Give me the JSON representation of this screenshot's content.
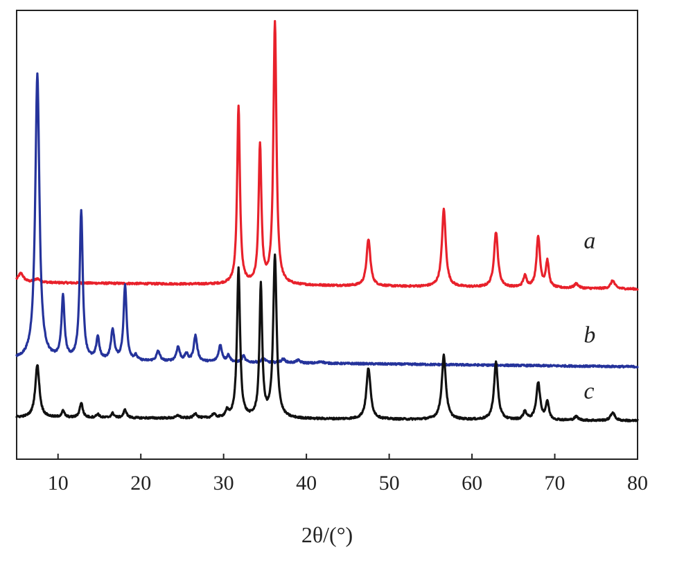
{
  "chart_data": {
    "type": "line",
    "title": "",
    "xlabel": "2θ/(°)",
    "ylabel": "",
    "xlim": [
      5,
      80
    ],
    "ylim": [
      0,
      1
    ],
    "grid": false,
    "legend": "none",
    "x_ticks": [
      10,
      20,
      30,
      40,
      50,
      60,
      70,
      80
    ],
    "series": [
      {
        "name": "a",
        "color": "#e8212b",
        "baseline": 0.394,
        "slope": -0.0002,
        "peaks": [
          {
            "x": 5.5,
            "h": 0.02,
            "w": 0.4
          },
          {
            "x": 7.5,
            "h": 0.008,
            "w": 0.4
          },
          {
            "x": 31.8,
            "h": 0.397,
            "w": 0.2
          },
          {
            "x": 34.4,
            "h": 0.308,
            "w": 0.2
          },
          {
            "x": 36.2,
            "h": 0.585,
            "w": 0.22
          },
          {
            "x": 47.5,
            "h": 0.104,
            "w": 0.28
          },
          {
            "x": 56.6,
            "h": 0.173,
            "w": 0.28
          },
          {
            "x": 62.9,
            "h": 0.123,
            "w": 0.28
          },
          {
            "x": 66.4,
            "h": 0.025,
            "w": 0.25
          },
          {
            "x": 68.0,
            "h": 0.114,
            "w": 0.25
          },
          {
            "x": 69.1,
            "h": 0.058,
            "w": 0.22
          },
          {
            "x": 72.6,
            "h": 0.01,
            "w": 0.3
          },
          {
            "x": 77.0,
            "h": 0.018,
            "w": 0.3
          }
        ]
      },
      {
        "name": "b",
        "color": "#25339b",
        "baseline": 0.221,
        "slope": -0.0002,
        "peaks": [
          {
            "x": 7.5,
            "h": 0.636,
            "w": 0.3
          },
          {
            "x": 10.6,
            "h": 0.137,
            "w": 0.22
          },
          {
            "x": 12.8,
            "h": 0.333,
            "w": 0.22
          },
          {
            "x": 14.8,
            "h": 0.05,
            "w": 0.22
          },
          {
            "x": 16.6,
            "h": 0.066,
            "w": 0.25
          },
          {
            "x": 18.1,
            "h": 0.167,
            "w": 0.22
          },
          {
            "x": 19.4,
            "h": 0.01,
            "w": 0.2
          },
          {
            "x": 22.1,
            "h": 0.022,
            "w": 0.25
          },
          {
            "x": 24.5,
            "h": 0.032,
            "w": 0.25
          },
          {
            "x": 25.5,
            "h": 0.016,
            "w": 0.22
          },
          {
            "x": 26.6,
            "h": 0.058,
            "w": 0.25
          },
          {
            "x": 29.6,
            "h": 0.037,
            "w": 0.25
          },
          {
            "x": 30.6,
            "h": 0.015,
            "w": 0.22
          },
          {
            "x": 32.4,
            "h": 0.014,
            "w": 0.22
          },
          {
            "x": 34.8,
            "h": 0.009,
            "w": 0.3
          },
          {
            "x": 37.2,
            "h": 0.008,
            "w": 0.3
          },
          {
            "x": 39.0,
            "h": 0.006,
            "w": 0.3
          },
          {
            "x": 41.8,
            "h": 0.004,
            "w": 0.3
          }
        ]
      },
      {
        "name": "c",
        "color": "#111111",
        "baseline": 0.093,
        "slope": -0.0001,
        "peaks": [
          {
            "x": 7.5,
            "h": 0.117,
            "w": 0.3
          },
          {
            "x": 10.6,
            "h": 0.014,
            "w": 0.22
          },
          {
            "x": 12.8,
            "h": 0.033,
            "w": 0.22
          },
          {
            "x": 14.8,
            "h": 0.008,
            "w": 0.22
          },
          {
            "x": 16.6,
            "h": 0.01,
            "w": 0.22
          },
          {
            "x": 18.1,
            "h": 0.018,
            "w": 0.22
          },
          {
            "x": 24.5,
            "h": 0.006,
            "w": 0.25
          },
          {
            "x": 26.6,
            "h": 0.01,
            "w": 0.25
          },
          {
            "x": 28.8,
            "h": 0.008,
            "w": 0.25
          },
          {
            "x": 30.4,
            "h": 0.014,
            "w": 0.22
          },
          {
            "x": 31.8,
            "h": 0.333,
            "w": 0.22
          },
          {
            "x": 34.5,
            "h": 0.293,
            "w": 0.2
          },
          {
            "x": 36.2,
            "h": 0.36,
            "w": 0.25
          },
          {
            "x": 47.5,
            "h": 0.114,
            "w": 0.3
          },
          {
            "x": 56.6,
            "h": 0.143,
            "w": 0.3
          },
          {
            "x": 62.9,
            "h": 0.128,
            "w": 0.28
          },
          {
            "x": 66.4,
            "h": 0.018,
            "w": 0.25
          },
          {
            "x": 68.0,
            "h": 0.083,
            "w": 0.28
          },
          {
            "x": 69.1,
            "h": 0.04,
            "w": 0.22
          },
          {
            "x": 72.6,
            "h": 0.008,
            "w": 0.3
          },
          {
            "x": 77.0,
            "h": 0.018,
            "w": 0.3
          }
        ]
      }
    ],
    "annotations": [
      {
        "text": "a",
        "x": 73.5,
        "y": 0.47
      },
      {
        "text": "b",
        "x": 73.5,
        "y": 0.26
      },
      {
        "text": "c",
        "x": 73.5,
        "y": 0.135
      }
    ]
  }
}
